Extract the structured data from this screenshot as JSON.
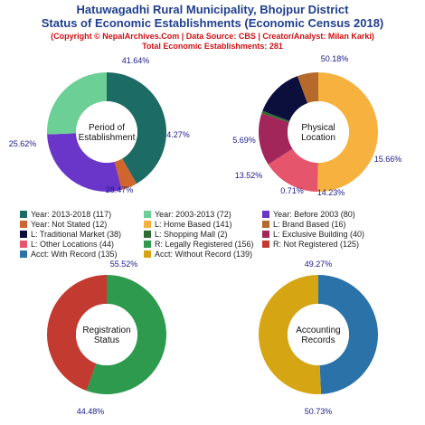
{
  "header": {
    "title_line1": "Hatuwagadhi Rural Municipality, Bhojpur District",
    "title_line2": "Status of Economic Establishments (Economic Census 2018)",
    "copyright": "(Copyright © NepalArchives.Com | Data Source: CBS | Creator/Analyst: Milan Karki)",
    "total": "Total Economic Establishments: 281"
  },
  "chart_data": [
    {
      "type": "pie",
      "center_label": [
        "Period of",
        "Establishment"
      ],
      "slices": [
        {
          "name": "Year: 2013-2018",
          "value": 117,
          "pct_label": "41.64%",
          "color": "#1d6b65"
        },
        {
          "name": "Year: Not Stated",
          "value": 12,
          "pct_label": "4.27%",
          "color": "#d0652e"
        },
        {
          "name": "Year: Before 2003",
          "value": 80,
          "pct_label": "28.47%",
          "color": "#6a35c9"
        },
        {
          "name": "Year: 2003-2013",
          "value": 72,
          "pct_label": "25.62%",
          "color": "#6ccf96"
        }
      ]
    },
    {
      "type": "pie",
      "center_label": [
        "Physical",
        "Location"
      ],
      "slices": [
        {
          "name": "L: Home Based",
          "value": 141,
          "pct_label": "50.18%",
          "color": "#f7b13f"
        },
        {
          "name": "L: Other Locations",
          "value": 44,
          "pct_label": "15.66%",
          "color": "#e5566d"
        },
        {
          "name": "L: Exclusive Building",
          "value": 40,
          "pct_label": "14.23%",
          "color": "#a3265a"
        },
        {
          "name": "L: Shopping Mall",
          "value": 2,
          "pct_label": "0.71%",
          "color": "#2e6b30"
        },
        {
          "name": "L: Traditional Market",
          "value": 38,
          "pct_label": "13.52%",
          "color": "#0c0e3c"
        },
        {
          "name": "L: Brand Based",
          "value": 16,
          "pct_label": "5.69%",
          "color": "#b5692b"
        }
      ]
    },
    {
      "type": "pie",
      "center_label": [
        "Registration",
        "Status"
      ],
      "slices": [
        {
          "name": "R: Legally Registered",
          "value": 156,
          "pct_label": "55.52%",
          "color": "#2d9a4d"
        },
        {
          "name": "R: Not Registered",
          "value": 125,
          "pct_label": "44.48%",
          "color": "#c23a30"
        }
      ]
    },
    {
      "type": "pie",
      "center_label": [
        "Accounting",
        "Records"
      ],
      "slices": [
        {
          "name": "Acct: With Record",
          "value": 135,
          "pct_label": "49.27%",
          "color": "#2a72a8"
        },
        {
          "name": "Acct: Without Record",
          "value": 139,
          "pct_label": "50.73%",
          "color": "#d5a514"
        }
      ]
    }
  ],
  "legend": [
    {
      "label": "Year: 2013-2018 (117)",
      "color": "#1d6b65"
    },
    {
      "label": "Year: 2003-2013 (72)",
      "color": "#6ccf96"
    },
    {
      "label": "Year: Before 2003 (80)",
      "color": "#6a35c9"
    },
    {
      "label": "Year: Not Stated (12)",
      "color": "#d0652e"
    },
    {
      "label": "L: Home Based (141)",
      "color": "#f7b13f"
    },
    {
      "label": "L: Brand Based (16)",
      "color": "#b5692b"
    },
    {
      "label": "L: Traditional Market (38)",
      "color": "#0c0e3c"
    },
    {
      "label": "L: Shopping Mall (2)",
      "color": "#2e6b30"
    },
    {
      "label": "L: Exclusive Building (40)",
      "color": "#a3265a"
    },
    {
      "label": "L: Other Locations (44)",
      "color": "#e5566d"
    },
    {
      "label": "R: Legally Registered (156)",
      "color": "#2d9a4d"
    },
    {
      "label": "R: Not Registered (125)",
      "color": "#c23a30"
    },
    {
      "label": "Acct: With Record (135)",
      "color": "#2a72a8"
    },
    {
      "label": "Acct: Without Record (139)",
      "color": "#d5a514"
    }
  ],
  "colors": {
    "title": "#1f3f8f",
    "subtitle": "#cc1111",
    "pct_label": "#1a1a8c"
  }
}
